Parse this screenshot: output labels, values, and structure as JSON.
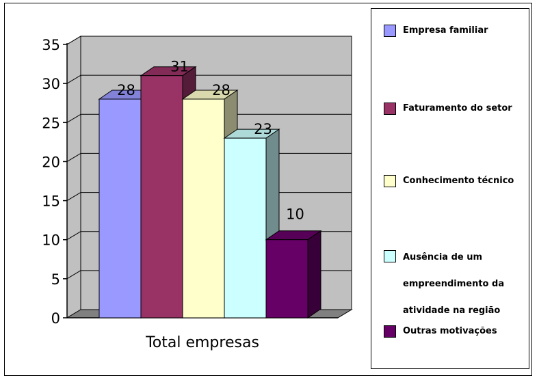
{
  "chart_data": {
    "type": "bar",
    "title": "",
    "xlabel": "Total empresas",
    "ylabel": "",
    "ylim": [
      0,
      35
    ],
    "yticks": [
      "0",
      "5",
      "10",
      "15",
      "20",
      "25",
      "30",
      "35"
    ],
    "grid": true,
    "legend_position": "right",
    "series": [
      {
        "name": "Empresa familiar",
        "value": 28,
        "color": "#9999ff"
      },
      {
        "name": "Faturamento do setor",
        "value": 31,
        "color": "#993366"
      },
      {
        "name": "Conhecimento técnico",
        "value": 28,
        "color": "#ffffcc"
      },
      {
        "name": "Ausência de um empreendimento da atividade na região",
        "value": 23,
        "color": "#ccffff"
      },
      {
        "name": "Outras motivações",
        "value": 10,
        "color": "#660066"
      }
    ],
    "wall_color": "#c0c0c0",
    "floor_color": "#808080"
  },
  "legend": {
    "entries": [
      {
        "lines": [
          "Empresa familiar"
        ]
      },
      {
        "lines": [
          "Faturamento do setor"
        ]
      },
      {
        "lines": [
          "Conhecimento técnico"
        ]
      },
      {
        "lines": [
          "Ausência de um",
          "empreendimento da",
          "atividade na região"
        ]
      },
      {
        "lines": [
          "Outras motivações"
        ]
      }
    ]
  }
}
